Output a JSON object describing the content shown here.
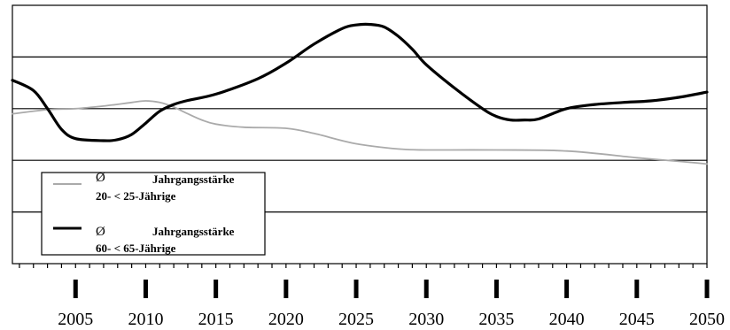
{
  "chart_data": {
    "type": "line",
    "title": "",
    "xlabel": "",
    "ylabel": "",
    "xlim": [
      2000.5,
      2050
    ],
    "ylim": [
      0,
      5
    ],
    "grid": true,
    "legend_position": "bottom-left",
    "x_tick_labels": [
      "2005",
      "2010",
      "2015",
      "2020",
      "2025",
      "2030",
      "2035",
      "2040",
      "2045",
      "2050"
    ],
    "x_ticks": [
      2005,
      2010,
      2015,
      2020,
      2025,
      2030,
      2035,
      2040,
      2045,
      2050
    ],
    "series": [
      {
        "legend_symbol": "Ø",
        "legend_line1": "Jahrgangsstärke",
        "legend_line2": "20- < 25-Jährige",
        "color": "#aaaaaa",
        "style": "thin",
        "x": [
          2000.5,
          2003,
          2005,
          2007,
          2009,
          2010,
          2011,
          2012,
          2013,
          2014,
          2015,
          2017,
          2020,
          2022,
          2025,
          2028,
          2030,
          2035,
          2040,
          2045,
          2048,
          2050
        ],
        "y": [
          2.9,
          2.98,
          3.0,
          3.05,
          3.12,
          3.15,
          3.12,
          3.03,
          2.9,
          2.78,
          2.7,
          2.64,
          2.62,
          2.52,
          2.32,
          2.22,
          2.2,
          2.2,
          2.18,
          2.05,
          1.98,
          1.93
        ]
      },
      {
        "legend_symbol": "Ø",
        "legend_line1": "Jahrgangsstärke",
        "legend_line2": "60- < 65-Jährige",
        "color": "#000000",
        "style": "thick",
        "x": [
          2000.5,
          2002,
          2003,
          2004,
          2005,
          2007,
          2008,
          2009,
          2010,
          2011,
          2012,
          2013,
          2015,
          2018,
          2020,
          2022,
          2024,
          2025,
          2026,
          2027,
          2028,
          2029,
          2030,
          2032,
          2034,
          2035,
          2036,
          2037,
          2038,
          2040,
          2042,
          2044,
          2046,
          2048,
          2050
        ],
        "y": [
          3.55,
          3.35,
          3.0,
          2.6,
          2.42,
          2.38,
          2.4,
          2.5,
          2.72,
          2.95,
          3.08,
          3.16,
          3.28,
          3.58,
          3.88,
          4.25,
          4.55,
          4.62,
          4.63,
          4.58,
          4.4,
          4.15,
          3.85,
          3.4,
          3.0,
          2.85,
          2.78,
          2.78,
          2.8,
          3.0,
          3.08,
          3.12,
          3.15,
          3.22,
          3.32
        ]
      }
    ]
  }
}
